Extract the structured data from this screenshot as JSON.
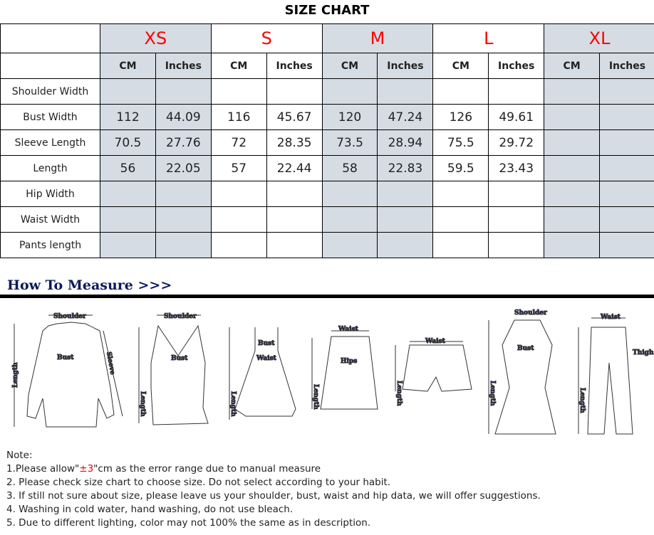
{
  "title": "SIZE CHART",
  "sizes": [
    "XS",
    "S",
    "M",
    "L",
    "XL"
  ],
  "units": {
    "cm": "CM",
    "in": "Inches"
  },
  "rows": [
    {
      "label": "Shoulder Width",
      "values": [
        "",
        "",
        "",
        "",
        "",
        "",
        "",
        "",
        "",
        ""
      ]
    },
    {
      "label": "Bust Width",
      "values": [
        "112",
        "44.09",
        "116",
        "45.67",
        "120",
        "47.24",
        "126",
        "49.61",
        "",
        ""
      ]
    },
    {
      "label": "Sleeve Length",
      "values": [
        "70.5",
        "27.76",
        "72",
        "28.35",
        "73.5",
        "28.94",
        "75.5",
        "29.72",
        "",
        ""
      ]
    },
    {
      "label": "Length",
      "values": [
        "56",
        "22.05",
        "57",
        "22.44",
        "58",
        "22.83",
        "59.5",
        "23.43",
        "",
        ""
      ]
    },
    {
      "label": "Hip Width",
      "values": [
        "",
        "",
        "",
        "",
        "",
        "",
        "",
        "",
        "",
        ""
      ]
    },
    {
      "label": "Waist Width",
      "values": [
        "",
        "",
        "",
        "",
        "",
        "",
        "",
        "",
        "",
        ""
      ]
    },
    {
      "label": "Pants length",
      "values": [
        "",
        "",
        "",
        "",
        "",
        "",
        "",
        "",
        "",
        ""
      ]
    }
  ],
  "colors": {
    "size_label": "#ff0000",
    "shade": "#d6dce4",
    "heading": "#0b1a5c"
  },
  "how_to_measure": "How To Measure >>>",
  "measure_labels": {
    "shoulder": "Shoulder",
    "bust": "Bust",
    "length": "Length",
    "sleeve": "Sleeve",
    "waist": "Waist",
    "hips": "Hips",
    "thigh": "Thigh"
  },
  "notes": {
    "heading": "Note:",
    "n1_pre": "1.Please allow\"",
    "n1_red": "±3",
    "n1_post": "\"cm as the error range due to manual measure",
    "n2": "2. Please check size chart to choose size. Do not select according to your habit.",
    "n3": "3. If still not sure about size, please leave us your shoulder, bust, waist and hip data, we will offer suggestions.",
    "n4": "4. Washing in cold water, hand washing, do not use bleach.",
    "n5": "5. Due to different lighting, color may not 100% the same as in description."
  }
}
